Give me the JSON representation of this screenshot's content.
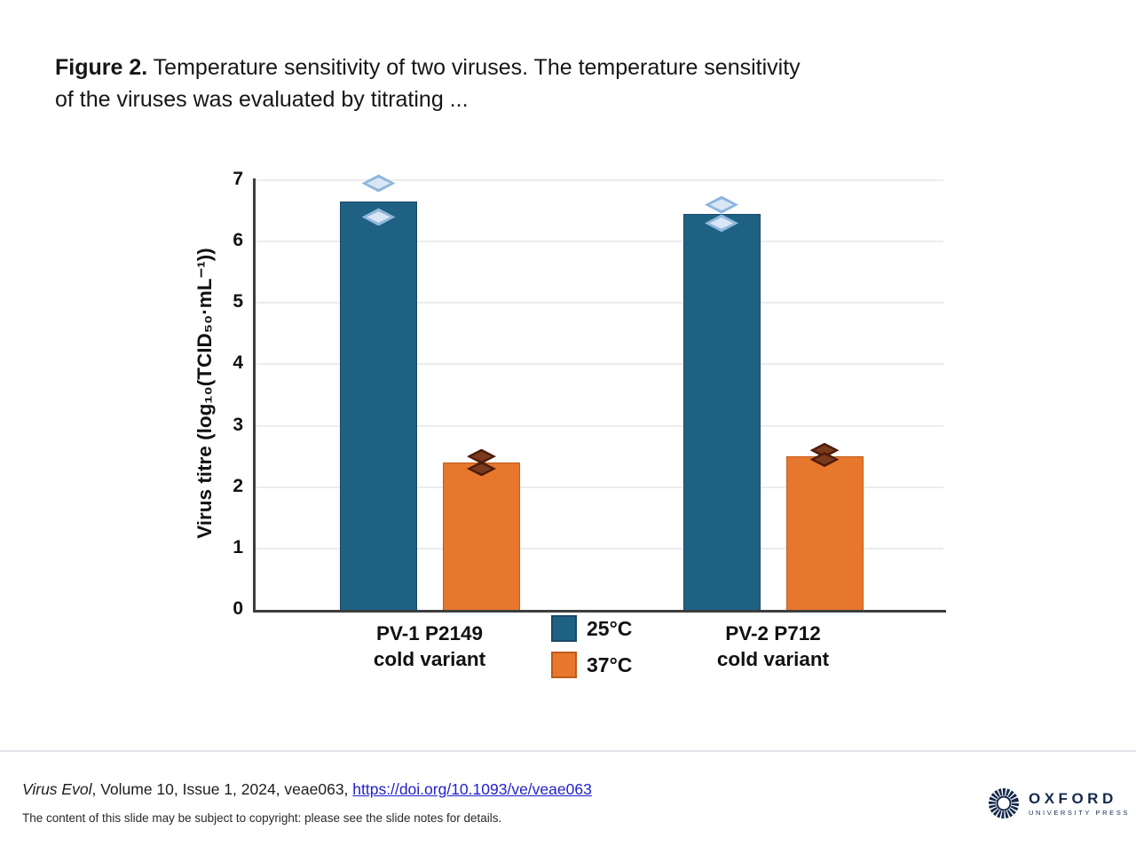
{
  "slide": {
    "title_bold": "Figure 2.",
    "title_rest": " Temperature sensitivity of two viruses. The temperature sensitivity of the viruses was evaluated by titrating ..."
  },
  "chart_data": {
    "type": "bar",
    "title": "",
    "xlabel": "",
    "ylabel": "Virus titre (log₁₀(TCID₅₀·mL⁻¹))",
    "ylim": [
      0,
      7
    ],
    "yticks": [
      0,
      1,
      2,
      3,
      4,
      5,
      6,
      7
    ],
    "grid": true,
    "legend_position": "bottom-center-between-groups",
    "categories": [
      "PV-1 P2149\ncold variant",
      "PV-2 P712\ncold variant"
    ],
    "series": [
      {
        "name": "25°C",
        "color": "#1f6183",
        "border_color": "#1b4965",
        "values": [
          6.65,
          6.45
        ],
        "point_fill": "#d9e6f3",
        "point_stroke": "#8fb6dc"
      },
      {
        "name": "37°C",
        "color": "#e8772e",
        "border_color": "#c05a1a",
        "values": [
          2.4,
          2.5
        ],
        "point_fill": "#7a3a1d",
        "point_stroke": "#4e1c09"
      }
    ],
    "points": [
      {
        "group": 0,
        "series": 0,
        "group_label": "PV-1 P2149 cold variant",
        "series_label": "25°C",
        "values": [
          6.95,
          6.4
        ]
      },
      {
        "group": 0,
        "series": 1,
        "group_label": "PV-1 P2149 cold variant",
        "series_label": "37°C",
        "values": [
          2.5,
          2.3
        ]
      },
      {
        "group": 1,
        "series": 0,
        "group_label": "PV-2 P712 cold variant",
        "series_label": "25°C",
        "values": [
          6.6,
          6.3
        ]
      },
      {
        "group": 1,
        "series": 1,
        "group_label": "PV-2 P712 cold variant",
        "series_label": "37°C",
        "values": [
          2.6,
          2.45
        ]
      }
    ]
  },
  "footer": {
    "journal_italic": "Virus Evol",
    "citation_rest": ", Volume 10, Issue 1, 2024, veae063, ",
    "doi_link": "https://doi.org/10.1093/ve/veae063",
    "copyright": "The content of this slide may be subject to copyright: please see the slide notes for details.",
    "publisher": "OXFORD",
    "publisher_sub": "UNIVERSITY PRESS",
    "brand_navy": "#14294b"
  }
}
